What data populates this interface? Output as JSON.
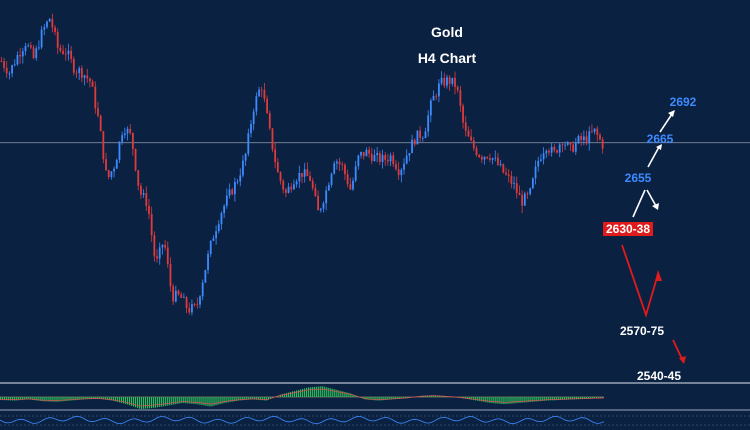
{
  "chart_data": {
    "type": "candlestick",
    "title": "Gold",
    "subtitle": "H4 Chart",
    "colors": {
      "background": "#0b2142",
      "bull": "#3d8bff",
      "bear": "#e03b3b",
      "white_label": "#ffffff",
      "blue_label": "#3d8bff",
      "red_box": "#e01b1b",
      "macd_bar": "#2dbf5a",
      "separator": "#9aa6b8"
    },
    "y_range": [
      2528,
      2722
    ],
    "current_price_line": 2651,
    "price_path": [
      2694,
      2688,
      2697,
      2704,
      2695,
      2709,
      2717,
      2700,
      2699,
      2690,
      2688,
      2683,
      2662,
      2631,
      2640,
      2660,
      2654,
      2625,
      2619,
      2586,
      2600,
      2570,
      2570,
      2563,
      2564,
      2583,
      2601,
      2614,
      2623,
      2631,
      2643,
      2669,
      2682,
      2657,
      2635,
      2624,
      2632,
      2635,
      2632,
      2614,
      2626,
      2643,
      2638,
      2626,
      2644,
      2646,
      2643,
      2642,
      2644,
      2636,
      2646,
      2654,
      2656,
      2673,
      2682,
      2684,
      2681,
      2657,
      2649,
      2644,
      2645,
      2640,
      2634,
      2629,
      2620,
      2623,
      2641,
      2650,
      2645,
      2653,
      2647,
      2652,
      2653,
      2657,
      2650
    ],
    "annotations": [
      {
        "text": "2692",
        "price": 2692,
        "style": "blue"
      },
      {
        "text": "2665",
        "price": 2665,
        "style": "blue"
      },
      {
        "text": "2655",
        "price": 2655,
        "style": "blue"
      },
      {
        "text": "2630-38",
        "price": 2634,
        "style": "red-box"
      },
      {
        "text": "2570-75",
        "price": 2572,
        "style": "white"
      },
      {
        "text": "2540-45",
        "price": 2542,
        "style": "white"
      }
    ],
    "indicator": {
      "type": "histogram",
      "values": [
        -0.25,
        -0.3,
        -0.2,
        -0.35,
        -0.4,
        -0.3,
        -0.2,
        -0.15,
        -0.3,
        -0.6,
        -1.0,
        -0.9,
        -0.7,
        -0.5,
        -0.6,
        -0.8,
        -0.5,
        -0.3,
        -0.2,
        -0.3,
        0.2,
        0.5,
        0.8,
        0.9,
        0.6,
        0.3,
        -0.2,
        -0.3,
        -0.2,
        -0.1,
        0.1,
        0.15,
        0.05,
        -0.1,
        -0.3,
        -0.5,
        -0.6,
        -0.5,
        -0.4,
        -0.3,
        -0.25,
        -0.2,
        -0.15,
        -0.1
      ]
    }
  }
}
